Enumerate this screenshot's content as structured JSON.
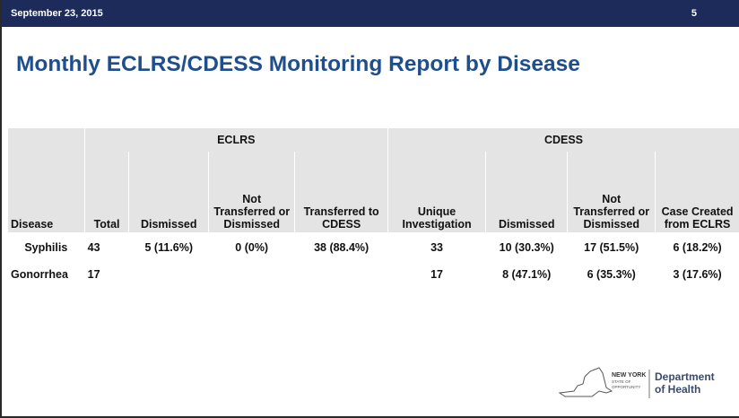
{
  "header": {
    "date": "September 23, 2015",
    "page": "5"
  },
  "title": "Monthly ECLRS/CDESS Monitoring Report by Disease",
  "table": {
    "groups": [
      {
        "label": "ECLRS",
        "span": 4
      },
      {
        "label": "CDESS",
        "span": 4
      }
    ],
    "columns": [
      "Disease",
      "Total",
      "Dismissed",
      "Not Transferred or Dismissed",
      "Transferred to CDESS",
      "Unique Investigation",
      "Dismissed",
      "Not Transferred or Dismissed",
      "Case Created from ECLRS"
    ],
    "rows": [
      [
        "Syphilis",
        "43",
        "5 (11.6%)",
        "0 (0%)",
        "38 (88.4%)",
        "33",
        "10 (30.3%)",
        "17 (51.5%)",
        "6 (18.2%)"
      ],
      [
        "Gonorrhea",
        "17",
        null,
        null,
        null,
        "17",
        "8 (47.1%)",
        "6 (35.3%)",
        "3 (17.6%)"
      ]
    ]
  },
  "logo": {
    "state": "NEW YORK",
    "sub1": "STATE OF",
    "sub2": "OPPORTUNITY",
    "dept1": "Department",
    "dept2": "of Health"
  }
}
